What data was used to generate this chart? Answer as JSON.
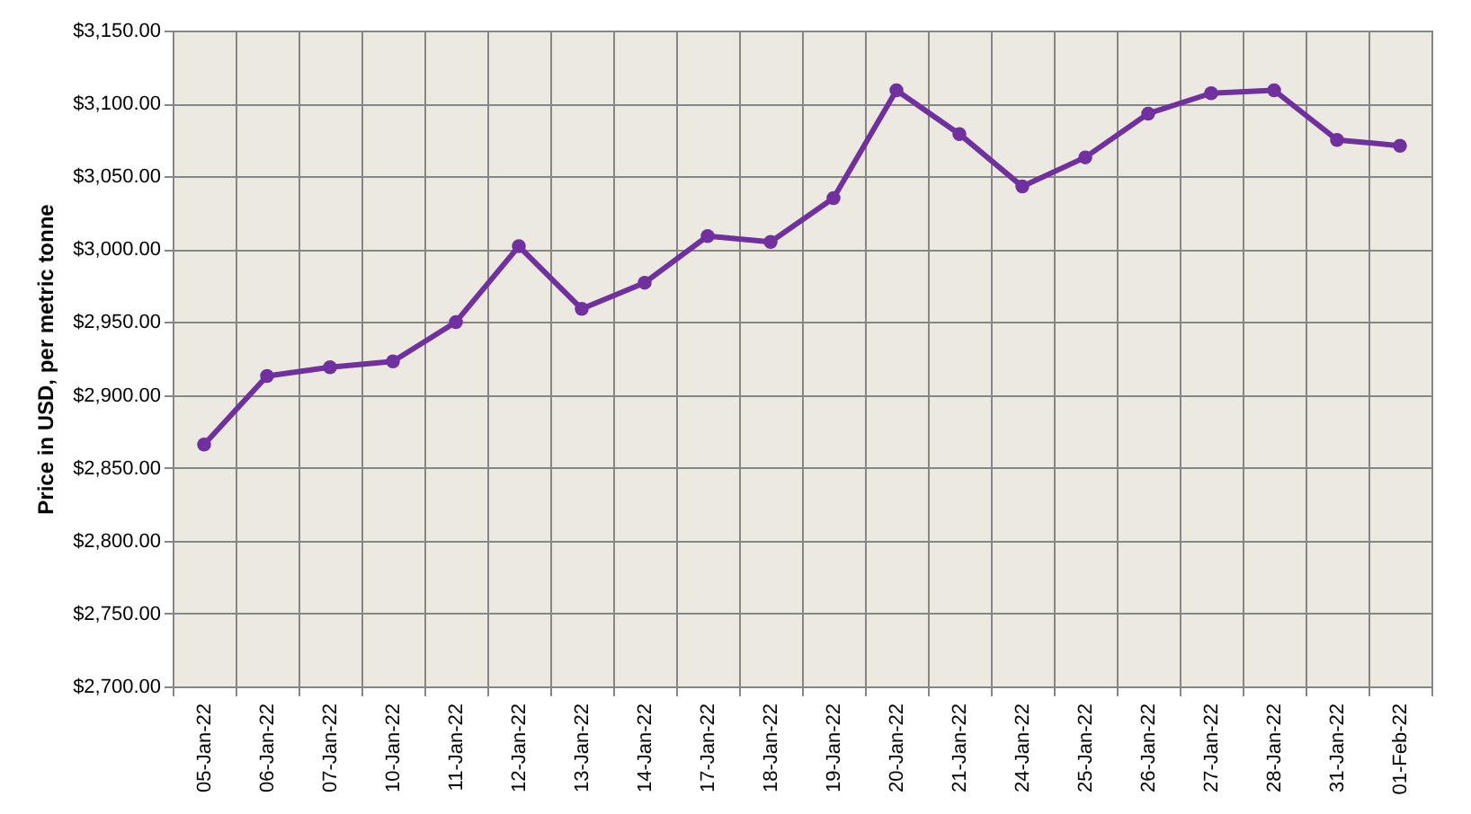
{
  "chart_data": {
    "type": "line",
    "ylabel": "Price in USD, per metric tonne",
    "categories": [
      "05-Jan-22",
      "06-Jan-22",
      "07-Jan-22",
      "10-Jan-22",
      "11-Jan-22",
      "12-Jan-22",
      "13-Jan-22",
      "14-Jan-22",
      "17-Jan-22",
      "18-Jan-22",
      "19-Jan-22",
      "20-Jan-22",
      "21-Jan-22",
      "24-Jan-22",
      "25-Jan-22",
      "26-Jan-22",
      "27-Jan-22",
      "28-Jan-22",
      "31-Jan-22",
      "01-Feb-22"
    ],
    "series": [
      {
        "color": "#7030a0",
        "values": [
          2866,
          2913,
          2919,
          2923,
          2950,
          3002,
          2959,
          2977,
          3009,
          3005,
          3035,
          3109,
          3079,
          3043,
          3063,
          3093,
          3107,
          3109,
          3075,
          3071
        ]
      }
    ],
    "ylim": [
      2700,
      3150
    ],
    "yticks": [
      {
        "value": 2700,
        "label": "$2,700.00"
      },
      {
        "value": 2750,
        "label": "$2,750.00"
      },
      {
        "value": 2800,
        "label": "$2,800.00"
      },
      {
        "value": 2850,
        "label": "$2,850.00"
      },
      {
        "value": 2900,
        "label": "$2,900.00"
      },
      {
        "value": 2950,
        "label": "$2,950.00"
      },
      {
        "value": 3000,
        "label": "$3,000.00"
      },
      {
        "value": 3050,
        "label": "$3,050.00"
      },
      {
        "value": 3100,
        "label": "$3,100.00"
      },
      {
        "value": 3150,
        "label": "$3,150.00"
      }
    ],
    "grid": true,
    "legend": false,
    "marker": "circle",
    "line_style": "solid"
  }
}
